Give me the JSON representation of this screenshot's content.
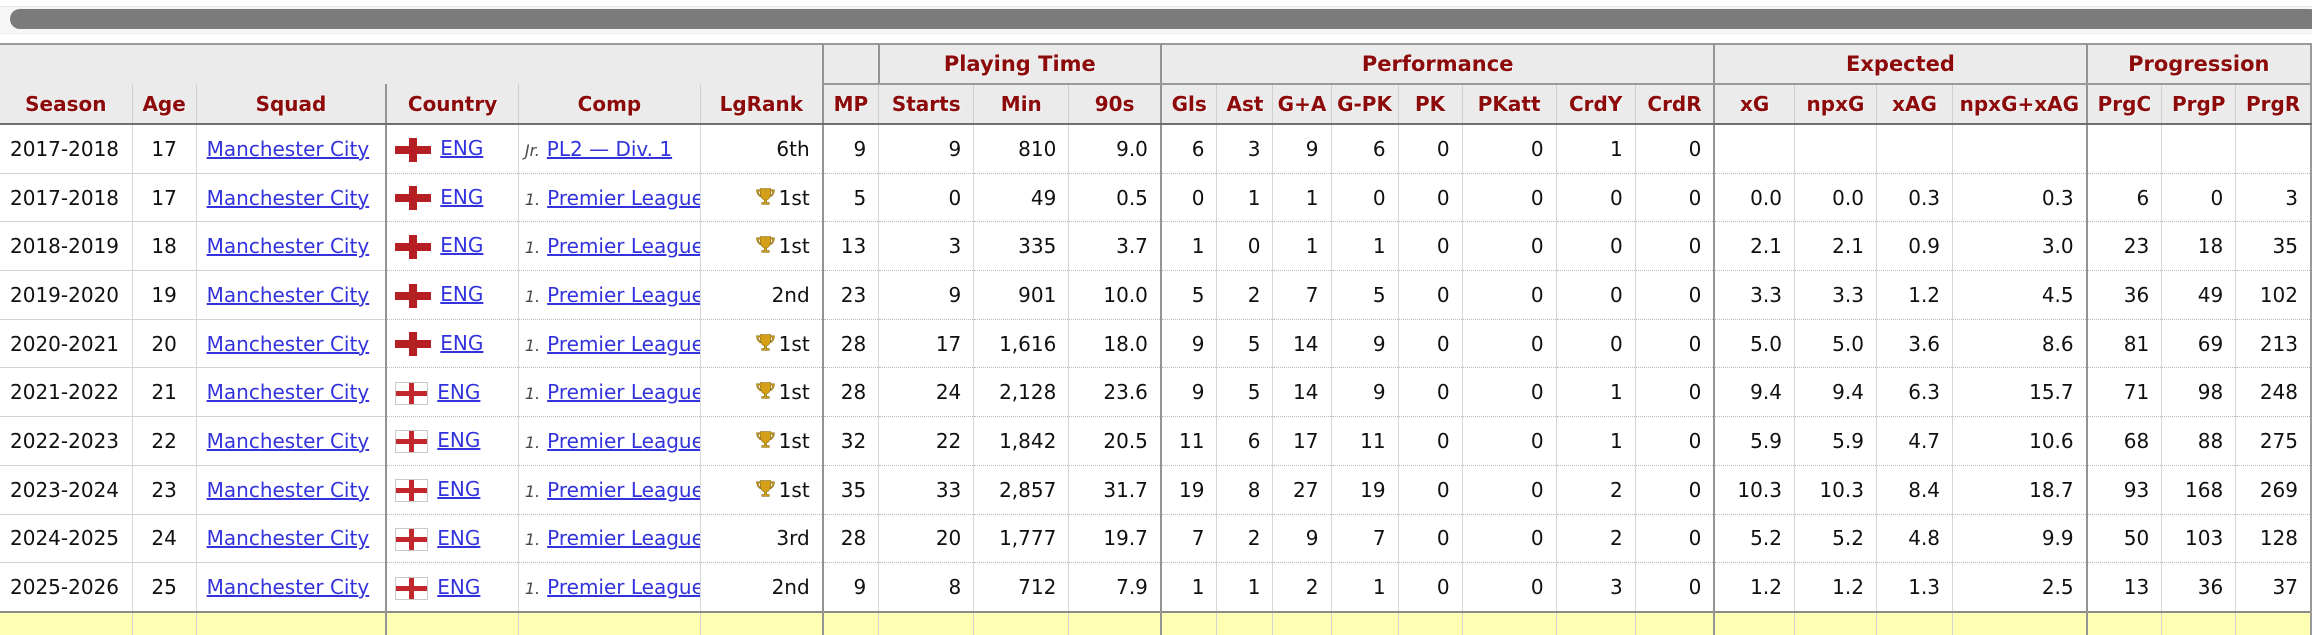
{
  "scrollbar": {
    "thumb_color": "#7b7b7b"
  },
  "colors": {
    "header_text": "#8c0a0a",
    "link": "#3333dd",
    "header_bg": "#ebebeb",
    "summary_row_bg": "#ffffb3",
    "flag_red": "#c1272d",
    "trophy_gold": "#d4a017"
  },
  "table": {
    "group_headers": {
      "playing_time": "Playing Time",
      "performance": "Performance",
      "expected": "Expected",
      "progression": "Progression"
    },
    "columns": [
      "Season",
      "Age",
      "Squad",
      "Country",
      "Comp",
      "LgRank",
      "MP",
      "Starts",
      "Min",
      "90s",
      "Gls",
      "Ast",
      "G+A",
      "G-PK",
      "PK",
      "PKatt",
      "CrdY",
      "CrdR",
      "xG",
      "npxG",
      "xAG",
      "npxG+xAG",
      "PrgC",
      "PrgP",
      "PrgR"
    ],
    "rows": [
      {
        "season": "2017-2018",
        "age": "17",
        "squad": "Manchester City",
        "country": "ENG",
        "flag_style": "cross",
        "comp_prefix": "Jr.",
        "comp": "PL2 — Div. 1",
        "lgrank": "6th",
        "trophy": false,
        "mp": "9",
        "starts": "9",
        "min": "810",
        "s90": "9.0",
        "gls": "6",
        "ast": "3",
        "ga": "9",
        "gpk": "6",
        "pk": "0",
        "pkatt": "0",
        "crdy": "1",
        "crdr": "0",
        "xg": "",
        "npxg": "",
        "xag": "",
        "npxgxag": "",
        "prgc": "",
        "prgp": "",
        "prgr": ""
      },
      {
        "season": "2017-2018",
        "age": "17",
        "squad": "Manchester City",
        "country": "ENG",
        "flag_style": "cross",
        "comp_prefix": "1.",
        "comp": "Premier League",
        "lgrank": "1st",
        "trophy": true,
        "mp": "5",
        "starts": "0",
        "min": "49",
        "s90": "0.5",
        "gls": "0",
        "ast": "1",
        "ga": "1",
        "gpk": "0",
        "pk": "0",
        "pkatt": "0",
        "crdy": "0",
        "crdr": "0",
        "xg": "0.0",
        "npxg": "0.0",
        "xag": "0.3",
        "npxgxag": "0.3",
        "prgc": "6",
        "prgp": "0",
        "prgr": "3"
      },
      {
        "season": "2018-2019",
        "age": "18",
        "squad": "Manchester City",
        "country": "ENG",
        "flag_style": "cross",
        "comp_prefix": "1.",
        "comp": "Premier League",
        "lgrank": "1st",
        "trophy": true,
        "mp": "13",
        "starts": "3",
        "min": "335",
        "s90": "3.7",
        "gls": "1",
        "ast": "0",
        "ga": "1",
        "gpk": "1",
        "pk": "0",
        "pkatt": "0",
        "crdy": "0",
        "crdr": "0",
        "xg": "2.1",
        "npxg": "2.1",
        "xag": "0.9",
        "npxgxag": "3.0",
        "prgc": "23",
        "prgp": "18",
        "prgr": "35"
      },
      {
        "season": "2019-2020",
        "age": "19",
        "squad": "Manchester City",
        "country": "ENG",
        "flag_style": "cross",
        "comp_prefix": "1.",
        "comp": "Premier League",
        "lgrank": "2nd",
        "trophy": false,
        "mp": "23",
        "starts": "9",
        "min": "901",
        "s90": "10.0",
        "gls": "5",
        "ast": "2",
        "ga": "7",
        "gpk": "5",
        "pk": "0",
        "pkatt": "0",
        "crdy": "0",
        "crdr": "0",
        "xg": "3.3",
        "npxg": "3.3",
        "xag": "1.2",
        "npxgxag": "4.5",
        "prgc": "36",
        "prgp": "49",
        "prgr": "102"
      },
      {
        "season": "2020-2021",
        "age": "20",
        "squad": "Manchester City",
        "country": "ENG",
        "flag_style": "cross",
        "comp_prefix": "1.",
        "comp": "Premier League",
        "lgrank": "1st",
        "trophy": true,
        "mp": "28",
        "starts": "17",
        "min": "1,616",
        "s90": "18.0",
        "gls": "9",
        "ast": "5",
        "ga": "14",
        "gpk": "9",
        "pk": "0",
        "pkatt": "0",
        "crdy": "0",
        "crdr": "0",
        "xg": "5.0",
        "npxg": "5.0",
        "xag": "3.6",
        "npxgxag": "8.6",
        "prgc": "81",
        "prgp": "69",
        "prgr": "213"
      },
      {
        "season": "2021-2022",
        "age": "21",
        "squad": "Manchester City",
        "country": "ENG",
        "flag_style": "boxed",
        "comp_prefix": "1.",
        "comp": "Premier League",
        "lgrank": "1st",
        "trophy": true,
        "mp": "28",
        "starts": "24",
        "min": "2,128",
        "s90": "23.6",
        "gls": "9",
        "ast": "5",
        "ga": "14",
        "gpk": "9",
        "pk": "0",
        "pkatt": "0",
        "crdy": "1",
        "crdr": "0",
        "xg": "9.4",
        "npxg": "9.4",
        "xag": "6.3",
        "npxgxag": "15.7",
        "prgc": "71",
        "prgp": "98",
        "prgr": "248"
      },
      {
        "season": "2022-2023",
        "age": "22",
        "squad": "Manchester City",
        "country": "ENG",
        "flag_style": "boxed",
        "comp_prefix": "1.",
        "comp": "Premier League",
        "lgrank": "1st",
        "trophy": true,
        "mp": "32",
        "starts": "22",
        "min": "1,842",
        "s90": "20.5",
        "gls": "11",
        "ast": "6",
        "ga": "17",
        "gpk": "11",
        "pk": "0",
        "pkatt": "0",
        "crdy": "1",
        "crdr": "0",
        "xg": "5.9",
        "npxg": "5.9",
        "xag": "4.7",
        "npxgxag": "10.6",
        "prgc": "68",
        "prgp": "88",
        "prgr": "275"
      },
      {
        "season": "2023-2024",
        "age": "23",
        "squad": "Manchester City",
        "country": "ENG",
        "flag_style": "boxed",
        "comp_prefix": "1.",
        "comp": "Premier League",
        "lgrank": "1st",
        "trophy": true,
        "mp": "35",
        "starts": "33",
        "min": "2,857",
        "s90": "31.7",
        "gls": "19",
        "ast": "8",
        "ga": "27",
        "gpk": "19",
        "pk": "0",
        "pkatt": "0",
        "crdy": "2",
        "crdr": "0",
        "xg": "10.3",
        "npxg": "10.3",
        "xag": "8.4",
        "npxgxag": "18.7",
        "prgc": "93",
        "prgp": "168",
        "prgr": "269"
      },
      {
        "season": "2024-2025",
        "age": "24",
        "squad": "Manchester City",
        "country": "ENG",
        "flag_style": "boxed",
        "comp_prefix": "1.",
        "comp": "Premier League",
        "lgrank": "3rd",
        "trophy": false,
        "mp": "28",
        "starts": "20",
        "min": "1,777",
        "s90": "19.7",
        "gls": "7",
        "ast": "2",
        "ga": "9",
        "gpk": "7",
        "pk": "0",
        "pkatt": "0",
        "crdy": "2",
        "crdr": "0",
        "xg": "5.2",
        "npxg": "5.2",
        "xag": "4.8",
        "npxgxag": "9.9",
        "prgc": "50",
        "prgp": "103",
        "prgr": "128"
      },
      {
        "season": "2025-2026",
        "age": "25",
        "squad": "Manchester City",
        "country": "ENG",
        "flag_style": "boxed",
        "comp_prefix": "1.",
        "comp": "Premier League",
        "lgrank": "2nd",
        "trophy": false,
        "mp": "9",
        "starts": "8",
        "min": "712",
        "s90": "7.9",
        "gls": "1",
        "ast": "1",
        "ga": "2",
        "gpk": "1",
        "pk": "0",
        "pkatt": "0",
        "crdy": "3",
        "crdr": "0",
        "xg": "1.2",
        "npxg": "1.2",
        "xag": "1.3",
        "npxgxag": "2.5",
        "prgc": "13",
        "prgp": "36",
        "prgr": "37"
      }
    ]
  }
}
